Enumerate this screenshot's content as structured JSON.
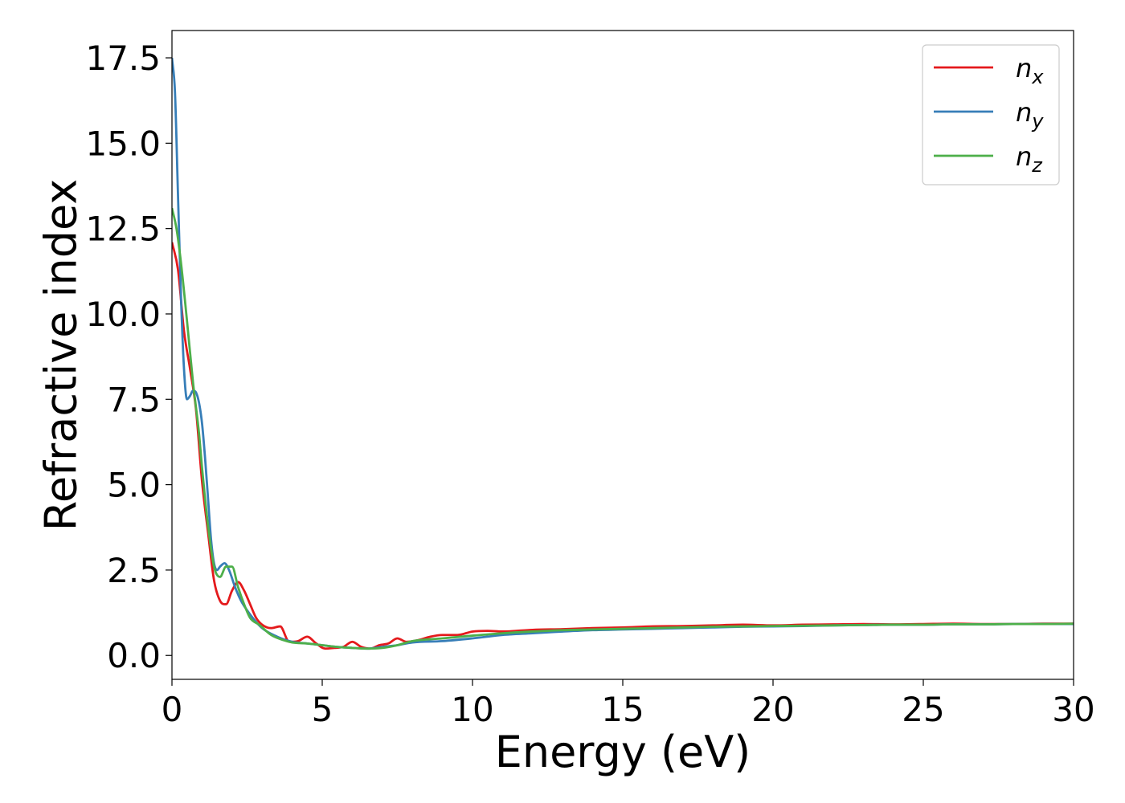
{
  "chart_data": {
    "type": "line",
    "title": "",
    "xlabel": "Energy (eV)",
    "ylabel": "Refractive index",
    "xlim": [
      0,
      30
    ],
    "ylim": [
      -0.7,
      18.3
    ],
    "xticks": [
      0,
      5,
      10,
      15,
      20,
      25,
      30
    ],
    "xtick_labels": [
      "0",
      "5",
      "10",
      "15",
      "20",
      "25",
      "30"
    ],
    "yticks": [
      0,
      2.5,
      5,
      7.5,
      10,
      12.5,
      15,
      17.5
    ],
    "ytick_labels": [
      "0.0",
      "2.5",
      "5.0",
      "7.5",
      "10.0",
      "12.5",
      "15.0",
      "17.5"
    ],
    "grid": false,
    "legend_position": "top-right",
    "series": [
      {
        "name": "n_x",
        "base": "n",
        "sub": "x",
        "color": "#e41a1c",
        "x": [
          0,
          0.2,
          0.4,
          0.6,
          0.8,
          1.0,
          1.2,
          1.4,
          1.6,
          1.8,
          2.0,
          2.2,
          2.4,
          2.6,
          2.8,
          3.0,
          3.3,
          3.6,
          3.9,
          4.2,
          4.5,
          4.8,
          5.1,
          5.4,
          5.7,
          6.0,
          6.3,
          6.6,
          6.9,
          7.2,
          7.5,
          7.8,
          8.2,
          8.6,
          9.0,
          9.5,
          10.0,
          10.5,
          11.0,
          12,
          13,
          14,
          15,
          16,
          17,
          18,
          19,
          20,
          21,
          22,
          23,
          24,
          25,
          26,
          27,
          28,
          29,
          30
        ],
        "y": [
          12.1,
          11.3,
          9.5,
          8.4,
          7.2,
          5.1,
          3.6,
          2.2,
          1.6,
          1.5,
          1.9,
          2.15,
          1.9,
          1.5,
          1.1,
          0.9,
          0.8,
          0.85,
          0.4,
          0.42,
          0.55,
          0.35,
          0.2,
          0.22,
          0.25,
          0.4,
          0.25,
          0.2,
          0.3,
          0.35,
          0.5,
          0.4,
          0.45,
          0.55,
          0.6,
          0.6,
          0.7,
          0.72,
          0.7,
          0.75,
          0.77,
          0.8,
          0.82,
          0.85,
          0.86,
          0.88,
          0.9,
          0.88,
          0.9,
          0.91,
          0.92,
          0.91,
          0.92,
          0.93,
          0.92,
          0.92,
          0.93,
          0.93
        ]
      },
      {
        "name": "n_y",
        "base": "n",
        "sub": "y",
        "color": "#377eb8",
        "x": [
          0,
          0.1,
          0.2,
          0.3,
          0.4,
          0.5,
          0.6,
          0.7,
          0.8,
          0.9,
          1.0,
          1.1,
          1.2,
          1.3,
          1.4,
          1.5,
          1.6,
          1.75,
          1.9,
          2.1,
          2.3,
          2.6,
          3.0,
          3.5,
          4.0,
          4.5,
          5.0,
          5.5,
          6.0,
          6.5,
          7.0,
          7.5,
          8.0,
          9.0,
          10.0,
          11.0,
          12,
          13,
          14,
          15,
          16,
          17,
          18,
          19,
          20,
          21,
          22,
          23,
          24,
          25,
          26,
          27,
          28,
          29,
          30
        ],
        "y": [
          17.5,
          16.5,
          13.5,
          10.5,
          8.4,
          7.5,
          7.6,
          7.75,
          7.7,
          7.4,
          6.8,
          5.8,
          4.6,
          3.4,
          2.7,
          2.5,
          2.6,
          2.7,
          2.5,
          2.0,
          1.6,
          1.2,
          0.8,
          0.55,
          0.4,
          0.35,
          0.3,
          0.25,
          0.22,
          0.2,
          0.25,
          0.3,
          0.38,
          0.42,
          0.5,
          0.6,
          0.65,
          0.7,
          0.74,
          0.76,
          0.78,
          0.8,
          0.82,
          0.84,
          0.85,
          0.86,
          0.88,
          0.89,
          0.9,
          0.9,
          0.91,
          0.91,
          0.92,
          0.92,
          0.92
        ]
      },
      {
        "name": "n_z",
        "base": "n",
        "sub": "z",
        "color": "#4daf4a",
        "x": [
          0,
          0.15,
          0.3,
          0.5,
          0.7,
          0.9,
          1.0,
          1.1,
          1.2,
          1.4,
          1.6,
          1.8,
          2.0,
          2.2,
          2.4,
          2.6,
          2.9,
          3.3,
          3.7,
          4.0,
          4.5,
          5.0,
          5.5,
          6.0,
          6.5,
          7.0,
          7.5,
          8.0,
          9.0,
          10.0,
          11.0,
          12,
          13,
          14,
          15,
          16,
          17,
          18,
          19,
          20,
          21,
          22,
          23,
          24,
          25,
          26,
          27,
          28,
          29,
          30
        ],
        "y": [
          13.1,
          12.5,
          11.5,
          9.8,
          8.0,
          6.5,
          5.5,
          4.6,
          3.8,
          2.6,
          2.3,
          2.6,
          2.6,
          2.0,
          1.5,
          1.1,
          0.9,
          0.6,
          0.45,
          0.38,
          0.35,
          0.3,
          0.25,
          0.22,
          0.2,
          0.22,
          0.3,
          0.42,
          0.5,
          0.58,
          0.65,
          0.7,
          0.74,
          0.76,
          0.78,
          0.8,
          0.82,
          0.84,
          0.85,
          0.86,
          0.87,
          0.88,
          0.89,
          0.9,
          0.9,
          0.91,
          0.91,
          0.92,
          0.92,
          0.93
        ]
      }
    ]
  }
}
